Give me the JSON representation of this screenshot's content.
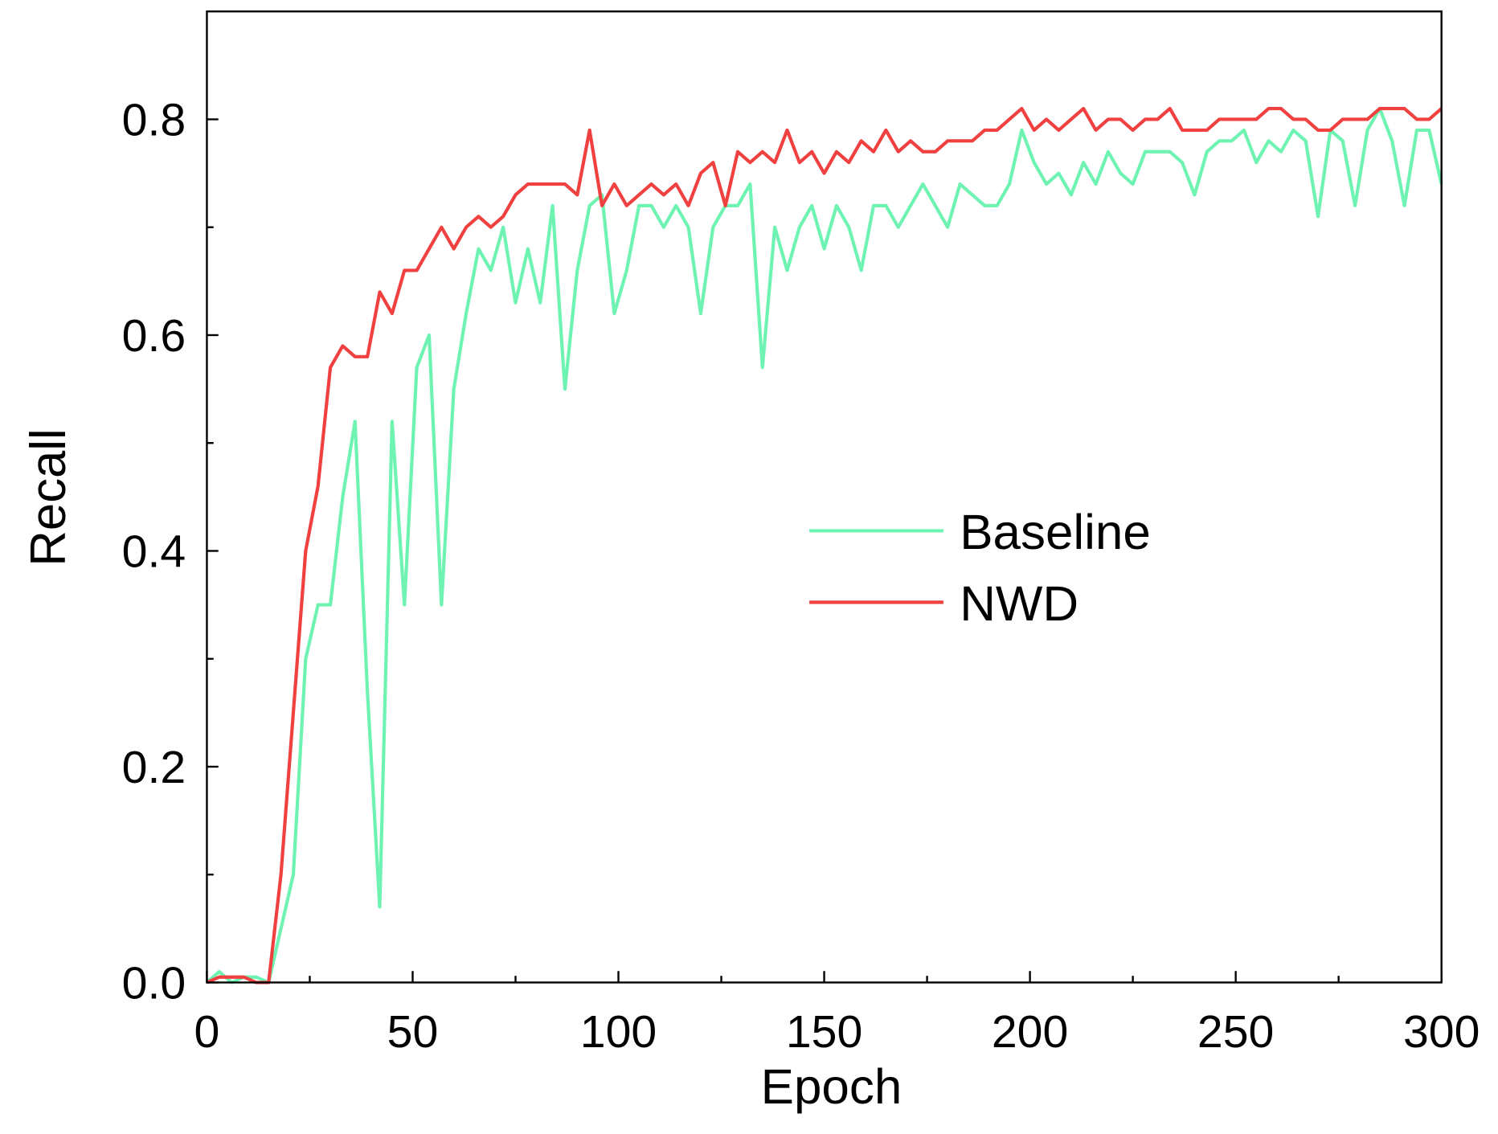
{
  "chart_data": {
    "type": "line",
    "xlabel": "Epoch",
    "ylabel": "Recall",
    "x": [
      0,
      3,
      6,
      9,
      12,
      15,
      18,
      21,
      24,
      27,
      30,
      33,
      36,
      39,
      42,
      45,
      48,
      51,
      54,
      57,
      60,
      63,
      66,
      69,
      72,
      75,
      78,
      81,
      84,
      87,
      90,
      93,
      96,
      99,
      102,
      105,
      108,
      111,
      114,
      117,
      120,
      123,
      126,
      129,
      132,
      135,
      138,
      141,
      144,
      147,
      150,
      153,
      156,
      159,
      162,
      165,
      168,
      171,
      174,
      177,
      180,
      183,
      186,
      189,
      192,
      195,
      198,
      201,
      204,
      207,
      210,
      213,
      216,
      219,
      222,
      225,
      228,
      231,
      234,
      237,
      240,
      243,
      246,
      249,
      252,
      255,
      258,
      261,
      264,
      267,
      270,
      273,
      276,
      279,
      282,
      285,
      288,
      291,
      294,
      297,
      300
    ],
    "series": [
      {
        "name": "Baseline",
        "color": "#6ff3b3",
        "values": [
          0,
          0.01,
          0,
          0.005,
          0.005,
          0,
          0.05,
          0.1,
          0.3,
          0.35,
          0.35,
          0.45,
          0.52,
          0.27,
          0.07,
          0.52,
          0.35,
          0.57,
          0.6,
          0.35,
          0.55,
          0.62,
          0.68,
          0.66,
          0.7,
          0.63,
          0.68,
          0.63,
          0.72,
          0.55,
          0.66,
          0.72,
          0.73,
          0.62,
          0.66,
          0.72,
          0.72,
          0.7,
          0.72,
          0.7,
          0.62,
          0.7,
          0.72,
          0.72,
          0.74,
          0.57,
          0.7,
          0.66,
          0.7,
          0.72,
          0.68,
          0.72,
          0.7,
          0.66,
          0.72,
          0.72,
          0.7,
          0.72,
          0.74,
          0.72,
          0.7,
          0.74,
          0.73,
          0.72,
          0.72,
          0.74,
          0.79,
          0.76,
          0.74,
          0.75,
          0.73,
          0.76,
          0.74,
          0.77,
          0.75,
          0.74,
          0.77,
          0.77,
          0.77,
          0.76,
          0.73,
          0.77,
          0.78,
          0.78,
          0.79,
          0.76,
          0.78,
          0.77,
          0.79,
          0.78,
          0.71,
          0.79,
          0.78,
          0.72,
          0.79,
          0.81,
          0.78,
          0.72,
          0.79,
          0.79,
          0.74
        ]
      },
      {
        "name": "NWD",
        "color": "#f04040",
        "values": [
          0,
          0.005,
          0.005,
          0.005,
          0,
          0,
          0.1,
          0.25,
          0.4,
          0.46,
          0.57,
          0.59,
          0.58,
          0.58,
          0.64,
          0.62,
          0.66,
          0.66,
          0.68,
          0.7,
          0.68,
          0.7,
          0.71,
          0.7,
          0.71,
          0.73,
          0.74,
          0.74,
          0.74,
          0.74,
          0.73,
          0.79,
          0.72,
          0.74,
          0.72,
          0.73,
          0.74,
          0.73,
          0.74,
          0.72,
          0.75,
          0.76,
          0.72,
          0.77,
          0.76,
          0.77,
          0.76,
          0.79,
          0.76,
          0.77,
          0.75,
          0.77,
          0.76,
          0.78,
          0.77,
          0.79,
          0.77,
          0.78,
          0.77,
          0.77,
          0.78,
          0.78,
          0.78,
          0.79,
          0.79,
          0.8,
          0.81,
          0.79,
          0.8,
          0.79,
          0.8,
          0.81,
          0.79,
          0.8,
          0.8,
          0.79,
          0.8,
          0.8,
          0.81,
          0.79,
          0.79,
          0.79,
          0.8,
          0.8,
          0.8,
          0.8,
          0.81,
          0.81,
          0.8,
          0.8,
          0.79,
          0.79,
          0.8,
          0.8,
          0.8,
          0.81,
          0.81,
          0.81,
          0.8,
          0.8,
          0.81
        ]
      }
    ],
    "xlim": [
      0,
      300
    ],
    "xticks": [
      0,
      50,
      100,
      150,
      200,
      250,
      300
    ],
    "ylim": [
      0,
      0.9
    ],
    "yticks": [
      {
        "value": 0,
        "label": "0.0"
      },
      0.2,
      0.4,
      0.6,
      0.8
    ],
    "legend": "center",
    "grid": false
  }
}
